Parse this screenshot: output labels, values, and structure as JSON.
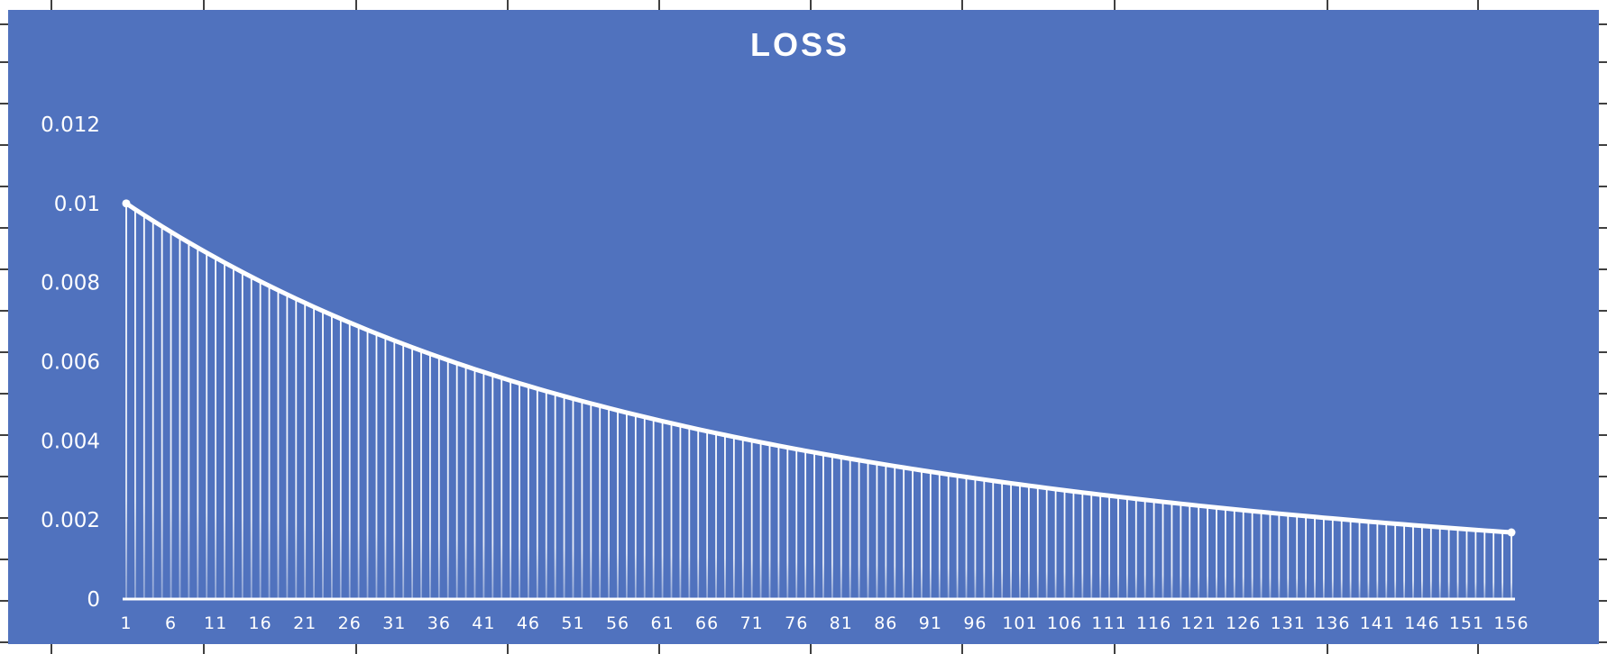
{
  "chart_data": {
    "type": "area",
    "title": "LOSS",
    "xlabel": "",
    "ylabel": "",
    "x_range": [
      1,
      156
    ],
    "x_tick_step": 5,
    "ylim": [
      0,
      0.012
    ],
    "y_ticks": [
      0,
      0.002,
      0.004,
      0.006,
      0.008,
      0.01,
      0.012
    ],
    "y_tick_labels": [
      "0",
      "0.002",
      "0.004",
      "0.006",
      "0.008",
      "0.01",
      "0.012"
    ],
    "grid": false,
    "legend": "none",
    "series": [
      {
        "x_start": 1,
        "x_step": 1,
        "values": [
          0.01,
          0.00985,
          0.009704,
          0.009561,
          0.00942,
          0.009282,
          0.009146,
          0.009013,
          0.008882,
          0.008754,
          0.008628,
          0.008504,
          0.008383,
          0.008263,
          0.008146,
          0.008031,
          0.007918,
          0.007807,
          0.007699,
          0.007592,
          0.007487,
          0.007384,
          0.007282,
          0.007183,
          0.007085,
          0.006989,
          0.006895,
          0.006802,
          0.006711,
          0.006622,
          0.006534,
          0.006448,
          0.006363,
          0.00628,
          0.006198,
          0.006118,
          0.006039,
          0.005961,
          0.005885,
          0.00581,
          0.005737,
          0.005664,
          0.005593,
          0.005523,
          0.005454,
          0.005387,
          0.00532,
          0.005255,
          0.005191,
          0.005127,
          0.005065,
          0.005004,
          0.004944,
          0.004885,
          0.004827,
          0.004769,
          0.004713,
          0.004658,
          0.004603,
          0.004549,
          0.004496,
          0.004444,
          0.004393,
          0.004342,
          0.004292,
          0.004243,
          0.004195,
          0.004147,
          0.0041,
          0.004054,
          0.004008,
          0.003963,
          0.003919,
          0.003875,
          0.003832,
          0.00379,
          0.003748,
          0.003707,
          0.003666,
          0.003626,
          0.003586,
          0.003547,
          0.003509,
          0.003471,
          0.003434,
          0.003397,
          0.00336,
          0.003324,
          0.003289,
          0.003254,
          0.003219,
          0.003185,
          0.003151,
          0.003118,
          0.003085,
          0.003053,
          0.003021,
          0.002989,
          0.002958,
          0.002927,
          0.002897,
          0.002867,
          0.002837,
          0.002808,
          0.002779,
          0.00275,
          0.002722,
          0.002694,
          0.002667,
          0.002639,
          0.002612,
          0.002586,
          0.00256,
          0.002534,
          0.002508,
          0.002483,
          0.002458,
          0.002433,
          0.002409,
          0.002385,
          0.002361,
          0.002338,
          0.002314,
          0.002291,
          0.002269,
          0.002246,
          0.002224,
          0.002202,
          0.002181,
          0.002159,
          0.002138,
          0.002118,
          0.002097,
          0.002077,
          0.002056,
          0.002037,
          0.002017,
          0.001998,
          0.001978,
          0.001959,
          0.001941,
          0.001922,
          0.001904,
          0.001886,
          0.001868,
          0.00185,
          0.001833,
          0.001816,
          0.001799,
          0.001782,
          0.001765,
          0.001748,
          0.001732,
          0.001716,
          0.0017,
          0.001684
        ]
      }
    ]
  },
  "colors": {
    "plot_background": "#5072BE",
    "series_line": "#FFFFFF",
    "text": "#FFFFFF",
    "spreadsheet_grid": "#000000",
    "page_background": "#FFFFFF"
  }
}
